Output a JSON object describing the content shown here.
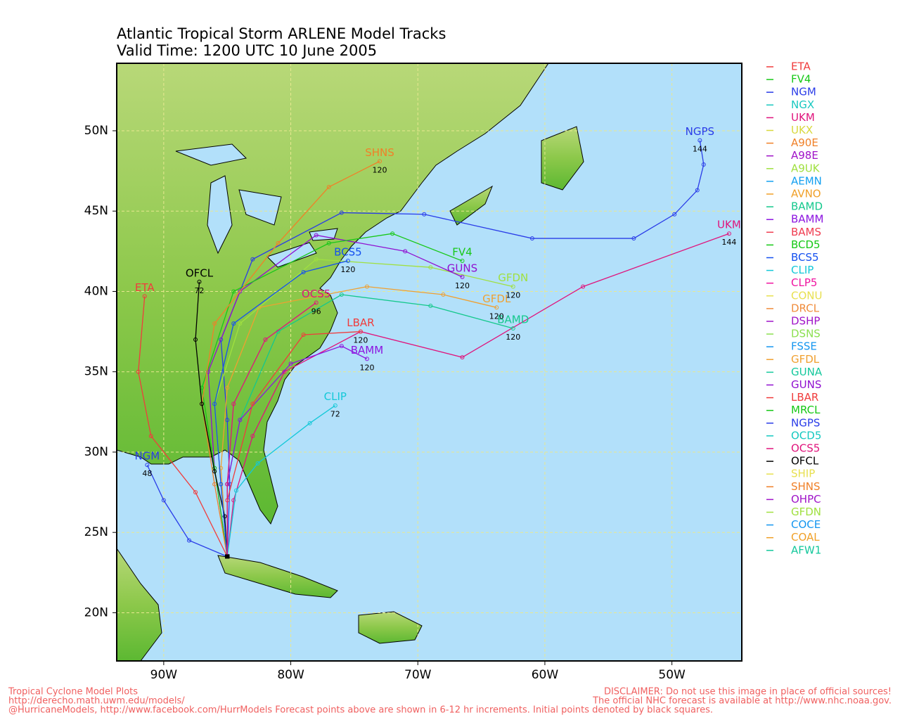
{
  "chart_data": {
    "type": "track-map",
    "title": [
      "Atlantic Tropical Storm ARLENE Model Tracks",
      "Valid Time: 1200 UTC 10 June 2005"
    ],
    "xlim": [
      -93.7,
      -44.5
    ],
    "ylim": [
      17.0,
      54.2
    ],
    "xticks": [
      {
        "value": -90,
        "label": "90W"
      },
      {
        "value": -80,
        "label": "80W"
      },
      {
        "value": -70,
        "label": "70W"
      },
      {
        "value": -60,
        "label": "60W"
      },
      {
        "value": -50,
        "label": "50W"
      }
    ],
    "yticks": [
      {
        "value": 20,
        "label": "20N"
      },
      {
        "value": 25,
        "label": "25N"
      },
      {
        "value": 30,
        "label": "30N"
      },
      {
        "value": 35,
        "label": "35N"
      },
      {
        "value": 40,
        "label": "40N"
      },
      {
        "value": 45,
        "label": "45N"
      },
      {
        "value": 50,
        "label": "50N"
      }
    ],
    "grid": true,
    "legend": [
      {
        "name": "ETA",
        "color": "#f03c3c"
      },
      {
        "name": "FV4",
        "color": "#18c818"
      },
      {
        "name": "NGM",
        "color": "#2a3ce8"
      },
      {
        "name": "NGX",
        "color": "#18c8c0"
      },
      {
        "name": "UKM",
        "color": "#e0147c"
      },
      {
        "name": "UKX",
        "color": "#d8d83c"
      },
      {
        "name": "A90E",
        "color": "#f08028"
      },
      {
        "name": "A98E",
        "color": "#a014c8"
      },
      {
        "name": "A9UK",
        "color": "#a0e040"
      },
      {
        "name": "AEMN",
        "color": "#14a0f0"
      },
      {
        "name": "AVNO",
        "color": "#f0a028"
      },
      {
        "name": "BAMD",
        "color": "#14c88c"
      },
      {
        "name": "BAMM",
        "color": "#8c14e0"
      },
      {
        "name": "BAMS",
        "color": "#f03c50"
      },
      {
        "name": "BCD5",
        "color": "#14c814"
      },
      {
        "name": "BCS5",
        "color": "#1450f0"
      },
      {
        "name": "CLIP",
        "color": "#14c8d8"
      },
      {
        "name": "CLP5",
        "color": "#f014a0"
      },
      {
        "name": "CONU",
        "color": "#e8e050"
      },
      {
        "name": "DRCL",
        "color": "#f08c3c"
      },
      {
        "name": "DSHP",
        "color": "#a014c8"
      },
      {
        "name": "DSNS",
        "color": "#8ce050"
      },
      {
        "name": "FSSE",
        "color": "#1496f0"
      },
      {
        "name": "GFDL",
        "color": "#f0a030"
      },
      {
        "name": "GUNA",
        "color": "#14c89c"
      },
      {
        "name": "GUNS",
        "color": "#9010d0"
      },
      {
        "name": "LBAR",
        "color": "#f03c3c"
      },
      {
        "name": "MRCL",
        "color": "#14c814"
      },
      {
        "name": "NGPS",
        "color": "#2a3ce8"
      },
      {
        "name": "OCD5",
        "color": "#14c8c0"
      },
      {
        "name": "OCS5",
        "color": "#e0147c"
      },
      {
        "name": "OFCL",
        "color": "#000000"
      },
      {
        "name": "SHIP",
        "color": "#e8e050"
      },
      {
        "name": "SHNS",
        "color": "#f08028"
      },
      {
        "name": "OHPC",
        "color": "#a014c8"
      },
      {
        "name": "GFDN",
        "color": "#a0e040"
      },
      {
        "name": "COCE",
        "color": "#1496f0"
      },
      {
        "name": "COAL",
        "color": "#f0a028"
      },
      {
        "name": "AFW1",
        "color": "#14c89c"
      }
    ],
    "series": [
      {
        "name": "NGPS",
        "color": "#2a3ce8",
        "x": [
          -85,
          -84.8,
          -85,
          -85.5,
          -83,
          -76,
          -69.5,
          -61,
          -53,
          -49.8,
          -48,
          -47.5,
          -47.8
        ],
        "values": [
          23.5,
          28,
          32,
          37,
          42,
          44.9,
          44.8,
          43.3,
          43.3,
          44.8,
          46.3,
          47.9,
          49.4
        ],
        "hour_label": "144"
      },
      {
        "name": "UKM",
        "color": "#e0147c",
        "x": [
          -85,
          -84.5,
          -83,
          -80.5,
          -74.5,
          -66.5,
          -57,
          -45.5
        ],
        "values": [
          23.5,
          27,
          31,
          35,
          37.5,
          35.9,
          40.3,
          43.6
        ],
        "hour_label": "144"
      },
      {
        "name": "BAMD",
        "color": "#14c88c",
        "x": [
          -85,
          -85,
          -84,
          -81,
          -76,
          -69,
          -62.5
        ],
        "values": [
          23.5,
          28,
          32,
          37.5,
          39.8,
          39.1,
          37.7
        ],
        "hour_label": "120"
      },
      {
        "name": "GFDL",
        "color": "#f0a030",
        "x": [
          -85,
          -85.5,
          -85,
          -82.5,
          -74,
          -68,
          -63.8
        ],
        "values": [
          23.5,
          29,
          34,
          39,
          40.3,
          39.8,
          39.0
        ],
        "hour_label": "120"
      },
      {
        "name": "GFDN",
        "color": "#a0e040",
        "x": [
          -85,
          -85.5,
          -86,
          -84,
          -78,
          -69,
          -62.5
        ],
        "values": [
          23.5,
          28,
          33,
          38,
          42,
          41.5,
          40.3
        ],
        "hour_label": "120"
      },
      {
        "name": "GUNS",
        "color": "#9010d0",
        "x": [
          -85,
          -86,
          -86.5,
          -84,
          -78,
          -71,
          -66.5
        ],
        "values": [
          23.5,
          29,
          35,
          40,
          43.5,
          42.5,
          40.9
        ],
        "hour_label": "120"
      },
      {
        "name": "FV4",
        "color": "#18c818",
        "x": [
          -85,
          -86,
          -87,
          -84.5,
          -77,
          -72,
          -66.5
        ],
        "values": [
          23.5,
          29,
          34,
          40,
          43,
          43.6,
          41.9
        ]
      },
      {
        "name": "SHNS",
        "color": "#f08028",
        "x": [
          -85,
          -86,
          -87,
          -86,
          -81,
          -77,
          -73
        ],
        "values": [
          23.5,
          28,
          33,
          38,
          43,
          46.5,
          48.1
        ],
        "hour_label": "120"
      },
      {
        "name": "CLIP",
        "color": "#14c8d8",
        "x": [
          -85,
          -84.3,
          -82.6,
          -78.5,
          -76.5
        ],
        "values": [
          23.5,
          27.6,
          29.3,
          31.8,
          32.9
        ],
        "hour_label": "72"
      },
      {
        "name": "ETA",
        "color": "#f03c3c",
        "x": [
          -85,
          -87.5,
          -91,
          -92,
          -91.5
        ],
        "values": [
          23.5,
          27.5,
          31,
          35,
          39.7
        ]
      },
      {
        "name": "NGM",
        "color": "#2a3ce8",
        "x": [
          -85,
          -88,
          -90,
          -91.3
        ],
        "values": [
          23.5,
          24.5,
          27,
          29.2
        ],
        "hour_label": "48"
      },
      {
        "name": "OFCL",
        "color": "#000000",
        "x": [
          -85,
          -85.2,
          -86,
          -87,
          -87.5,
          -87.2
        ],
        "values": [
          23.5,
          26,
          28.8,
          33,
          37,
          40.6
        ],
        "hour_label": "72"
      },
      {
        "name": "BAMM",
        "color": "#8c14e0",
        "x": [
          -85,
          -85,
          -84,
          -80,
          -76,
          -74
        ],
        "values": [
          23.5,
          28,
          32,
          35.5,
          36.6,
          35.8
        ],
        "hour_label": "120"
      },
      {
        "name": "LBAR",
        "color": "#f03c3c",
        "x": [
          -85,
          -85,
          -83,
          -79,
          -74.5
        ],
        "values": [
          23.5,
          27,
          33,
          37.3,
          37.5
        ],
        "hour_label": "120"
      },
      {
        "name": "BCS5",
        "color": "#1450f0",
        "x": [
          -85,
          -85.5,
          -86,
          -84.5,
          -79,
          -75.5
        ],
        "values": [
          23.5,
          28,
          33,
          38,
          41.2,
          41.9
        ],
        "hour_label": "120"
      },
      {
        "name": "OCS5",
        "color": "#e0147c",
        "x": [
          -85,
          -85,
          -84.5,
          -82,
          -78
        ],
        "values": [
          23.5,
          28,
          33,
          37,
          39.3
        ],
        "hour_label": "96"
      }
    ],
    "footer_left": [
      "Tropical Cyclone Model Plots",
      "http://derecho.math.uwm.edu/models/",
      "@HurricaneModels, http://www.facebook.com/HurrModels  Forecast points above are shown in 6-12 hr increments. Initial points denoted by black squares."
    ],
    "footer_right": [
      "DISCLAIMER: Do not use this image in place of official sources!",
      "The official NHC forecast is available at http://www.nhc.noaa.gov."
    ]
  }
}
